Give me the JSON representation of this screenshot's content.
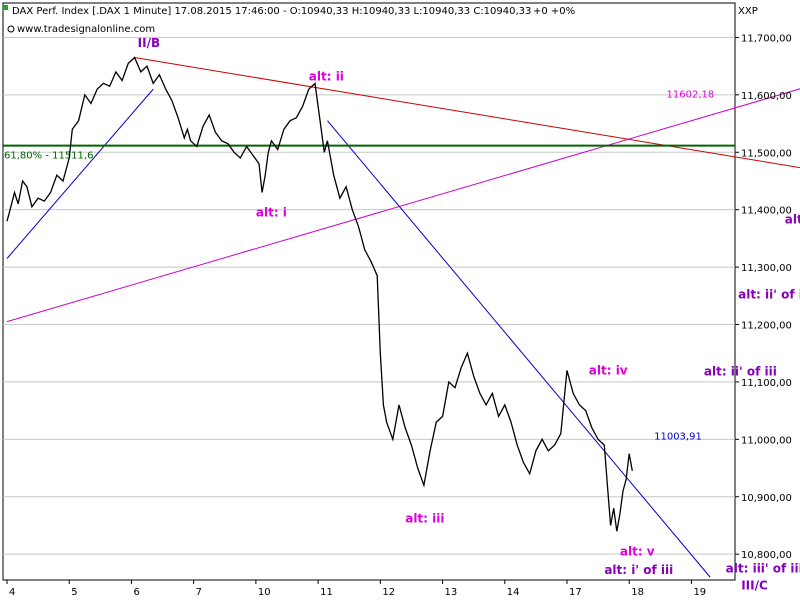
{
  "header": {
    "title": "DAX Perf. Index [.DAX  1 Minute] 17.08.2015 17:46:00 - O:10940,33 H:10940,33 L:10940,33 C:10940,33",
    "change": "+0 +0%",
    "website": "www.tradesignalonline.com",
    "axis_code": "XXP"
  },
  "colors": {
    "price": "#000000",
    "red_trend": "#cc0000",
    "magenta_trend": "#cc00cc",
    "blue_trend": "#0000cc",
    "fib_line": "#006600",
    "ann_magenta": "#dd00dd",
    "ann_purple": "#8800bb",
    "grid": "#c8c8c8",
    "change_green": "#009900"
  },
  "chart_data": {
    "type": "line",
    "x_labels": [
      "4",
      "5",
      "6",
      "7",
      "10",
      "11",
      "12",
      "13",
      "14",
      "17",
      "18",
      "19"
    ],
    "y_ticks": [
      "11,700,00",
      "11,600,00",
      "11,500,00",
      "11,400,00",
      "11,300,00",
      "11,200,00",
      "11,100,00",
      "11,000,00",
      "10,900,00",
      "10,800,00"
    ],
    "y_tick_values": [
      11700,
      11600,
      11500,
      11400,
      11300,
      11200,
      11100,
      11000,
      10900,
      10800
    ],
    "ylim": [
      10755,
      11760
    ],
    "xlim": [
      0,
      11.7
    ],
    "series": [
      {
        "x": [
          0,
          0.05,
          0.12,
          0.18,
          0.25,
          0.32,
          0.4,
          0.5,
          0.6,
          0.7,
          0.8,
          0.9,
          1.0,
          1.05,
          1.15,
          1.25,
          1.35,
          1.45,
          1.55,
          1.65,
          1.75,
          1.85,
          1.95,
          2.05,
          2.15,
          2.25,
          2.35,
          2.45,
          2.55,
          2.65,
          2.75,
          2.85,
          2.9,
          2.95,
          3.05,
          3.15,
          3.25,
          3.35,
          3.45,
          3.55,
          3.65,
          3.75,
          3.85,
          3.95,
          4.05,
          4.1,
          4.15,
          4.2,
          4.25,
          4.35,
          4.45,
          4.55,
          4.65,
          4.75,
          4.85,
          4.95,
          5.05,
          5.1,
          5.15,
          5.25,
          5.35,
          5.45,
          5.55,
          5.65,
          5.75,
          5.85,
          5.95,
          6.0,
          6.05,
          6.1,
          6.2,
          6.3,
          6.4,
          6.5,
          6.6,
          6.7,
          6.8,
          6.9,
          7.0,
          7.1,
          7.2,
          7.3,
          7.4,
          7.5,
          7.6,
          7.7,
          7.8,
          7.9,
          8.0,
          8.1,
          8.2,
          8.3,
          8.4,
          8.5,
          8.6,
          8.7,
          8.8,
          8.9,
          9.0,
          9.1,
          9.2,
          9.3,
          9.4,
          9.5,
          9.6,
          9.65,
          9.7,
          9.75,
          9.8,
          9.85,
          9.9,
          9.95,
          10.0,
          10.05
        ],
        "values": [
          11380,
          11400,
          11430,
          11410,
          11450,
          11440,
          11405,
          11420,
          11415,
          11430,
          11460,
          11450,
          11490,
          11540,
          11555,
          11600,
          11585,
          11610,
          11620,
          11615,
          11640,
          11625,
          11655,
          11665,
          11640,
          11650,
          11620,
          11635,
          11610,
          11590,
          11560,
          11525,
          11540,
          11520,
          11510,
          11545,
          11565,
          11535,
          11520,
          11515,
          11500,
          11490,
          11510,
          11495,
          11480,
          11430,
          11460,
          11500,
          11520,
          11505,
          11540,
          11555,
          11560,
          11580,
          11610,
          11620,
          11540,
          11500,
          11520,
          11460,
          11420,
          11440,
          11400,
          11370,
          11330,
          11310,
          11285,
          11150,
          11060,
          11030,
          11000,
          11060,
          11020,
          10990,
          10950,
          10920,
          10980,
          11030,
          11040,
          11100,
          11090,
          11125,
          11150,
          11110,
          11080,
          11060,
          11080,
          11040,
          11060,
          11030,
          10990,
          10960,
          10940,
          10980,
          11000,
          10980,
          10990,
          11010,
          11120,
          11080,
          11060,
          11050,
          11020,
          11000,
          10990,
          10920,
          10850,
          10880,
          10840,
          10870,
          10910,
          10930,
          10975,
          10945
        ]
      }
    ],
    "lines": [
      {
        "name": "red",
        "x": [
          2.05,
          13.2
        ],
        "y": [
          11665,
          11465
        ]
      },
      {
        "name": "magenta",
        "x": [
          0,
          13.2
        ],
        "y": [
          11205,
          11625
        ]
      },
      {
        "name": "blue-upper",
        "x": [
          5.15,
          11.3
        ],
        "y": [
          11555,
          10760
        ]
      },
      {
        "name": "blue-lower",
        "x": [
          0,
          2.35
        ],
        "y": [
          11315,
          11610
        ]
      }
    ],
    "fib_level": 11511.6,
    "fib_label": "61,80% - 11511,6",
    "price_labels": [
      {
        "text": "11602,18",
        "x": 10.6,
        "y": 11602,
        "color": "magenta"
      },
      {
        "text": "11003,91",
        "x": 10.4,
        "y": 11007,
        "color": "blue"
      }
    ],
    "annotations": [
      {
        "text": "II/B",
        "x": 2.1,
        "y": 11690,
        "color": "purple"
      },
      {
        "text": "alt: ii",
        "x": 4.85,
        "y": 11632,
        "color": "magenta"
      },
      {
        "text": "alt: i",
        "x": 4.0,
        "y": 11395,
        "color": "magenta"
      },
      {
        "text": "alt: ii' of iii",
        "x": 12.5,
        "y": 11383,
        "color": "purple"
      },
      {
        "text": "alt: ii' of iii",
        "x": 11.75,
        "y": 11252,
        "color": "purple"
      },
      {
        "text": "alt: iv",
        "x": 9.35,
        "y": 11120,
        "color": "magenta"
      },
      {
        "text": "alt: ii' of iii",
        "x": 11.2,
        "y": 11118,
        "color": "purple"
      },
      {
        "text": "alt: iii",
        "x": 6.4,
        "y": 10862,
        "color": "magenta"
      },
      {
        "text": "alt: v",
        "x": 9.85,
        "y": 10805,
        "color": "magenta"
      },
      {
        "text": "alt: i' of iii",
        "x": 9.6,
        "y": 10772,
        "color": "purple"
      },
      {
        "text": "alt: iii' of iii",
        "x": 11.55,
        "y": 10775,
        "color": "purple"
      },
      {
        "text": "III/C",
        "x": 11.8,
        "y": 10745,
        "color": "purple"
      }
    ]
  }
}
